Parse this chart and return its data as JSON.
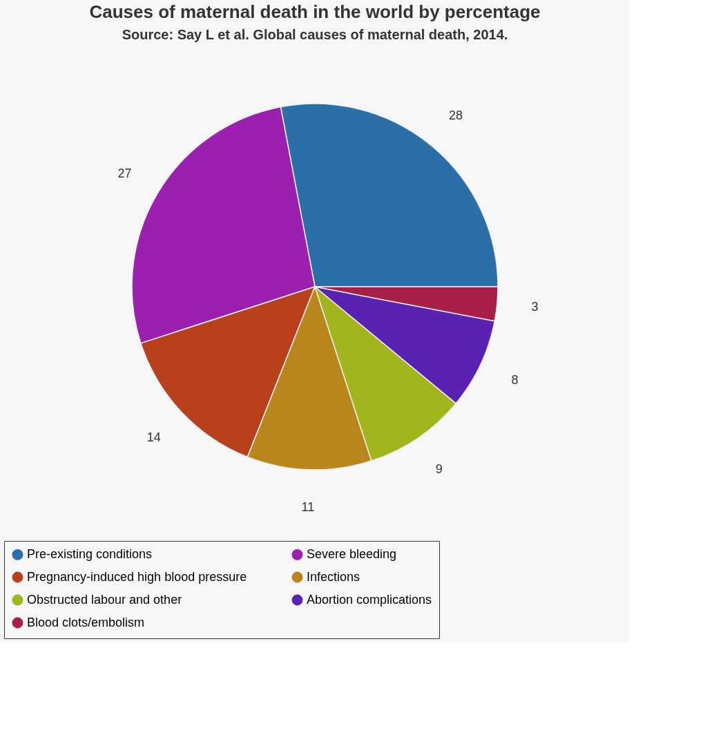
{
  "chart_data": {
    "type": "pie",
    "title": "Causes of maternal death in the world by percentage",
    "subtitle": "Source: Say L et al. Global causes of maternal death, 2014.",
    "categories": [
      "Pre-existing conditions",
      "Severe bleeding",
      "Pregnancy-induced high blood pressure",
      "Infections",
      "Obstructed labour and other",
      "Abortion complications",
      "Blood clots/embolism"
    ],
    "values": [
      28,
      27,
      14,
      11,
      9,
      8,
      3
    ],
    "colors": [
      "#2a6fa8",
      "#9b20b0",
      "#b8401a",
      "#b8861a",
      "#a3b51c",
      "#5a22b0",
      "#a82048"
    ],
    "data_labels": true,
    "legend": "bottom"
  }
}
